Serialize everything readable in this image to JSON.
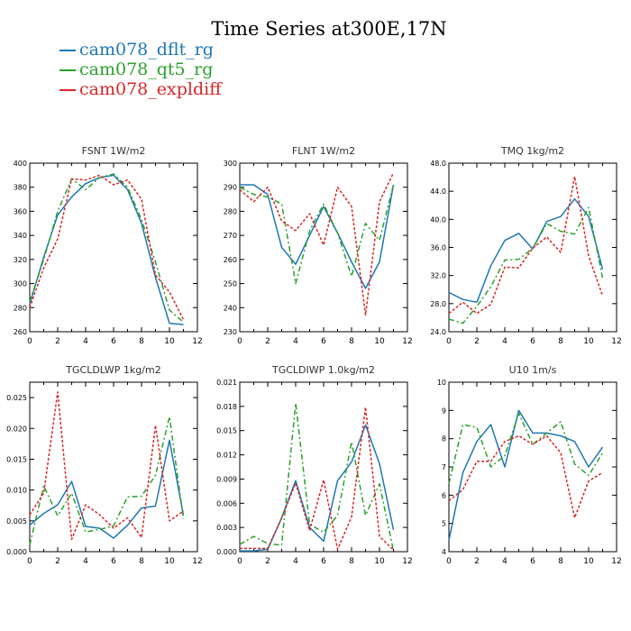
{
  "title": "Time Series at300E,17N",
  "legend": [
    {
      "name": "cam078_dflt_rg",
      "color": "#1f77b4"
    },
    {
      "name": "cam078_qt5_rg",
      "color": "#2ca02c"
    },
    {
      "name": "cam078_expldiff",
      "color": "#d62728"
    }
  ],
  "chart_data": [
    {
      "type": "line",
      "title": "FSNT   1W/m2",
      "x": [
        0,
        1,
        2,
        3,
        4,
        5,
        6,
        7,
        8,
        9,
        10,
        11
      ],
      "xlim": [
        0,
        12
      ],
      "xticks": [
        0,
        2,
        4,
        6,
        8,
        10,
        12
      ],
      "ylim": [
        260,
        400
      ],
      "yticks": [
        260,
        280,
        300,
        320,
        340,
        360,
        380,
        400
      ],
      "ytick_labels": [
        "260",
        "280",
        "300",
        "320",
        "340",
        "360",
        "380",
        "400"
      ],
      "series": [
        {
          "name": "cam078_dflt_rg",
          "color": "#1f77b4",
          "dash": "",
          "values": [
            283,
            322,
            357,
            372,
            383,
            388,
            390,
            378,
            350,
            305,
            267,
            266
          ]
        },
        {
          "name": "cam078_qt5_rg",
          "color": "#2ca02c",
          "dash": "6,3,2,3",
          "values": [
            285,
            320,
            360,
            387,
            378,
            388,
            391,
            380,
            353,
            318,
            278,
            268
          ]
        },
        {
          "name": "cam078_expldiff",
          "color": "#d62728",
          "dash": "3,2",
          "values": [
            280,
            313,
            337,
            387,
            386,
            390,
            382,
            386,
            370,
            307,
            293,
            270
          ]
        }
      ]
    },
    {
      "type": "line",
      "title": "FLNT   1W/m2",
      "x": [
        0,
        1,
        2,
        3,
        4,
        5,
        6,
        7,
        8,
        9,
        10,
        11
      ],
      "xlim": [
        0,
        12
      ],
      "xticks": [
        0,
        2,
        4,
        6,
        8,
        10,
        12
      ],
      "ylim": [
        230,
        300
      ],
      "yticks": [
        230,
        240,
        250,
        260,
        270,
        280,
        290,
        300
      ],
      "ytick_labels": [
        "230",
        "240",
        "250",
        "260",
        "270",
        "280",
        "290",
        "300"
      ],
      "series": [
        {
          "name": "cam078_dflt_rg",
          "color": "#1f77b4",
          "dash": "",
          "values": [
            291,
            291,
            287,
            265,
            258,
            270,
            282,
            271,
            259,
            248,
            259,
            291
          ]
        },
        {
          "name": "cam078_qt5_rg",
          "color": "#2ca02c",
          "dash": "6,3,2,3",
          "values": [
            290,
            287,
            286,
            283,
            250,
            272,
            283,
            271,
            253,
            275,
            268,
            291
          ]
        },
        {
          "name": "cam078_expldiff",
          "color": "#d62728",
          "dash": "3,2",
          "values": [
            289,
            284,
            290,
            276,
            272,
            279,
            266,
            290,
            282,
            237,
            284,
            296
          ]
        }
      ]
    },
    {
      "type": "line",
      "title": "TMQ   1kg/m2",
      "x": [
        0,
        1,
        2,
        3,
        4,
        5,
        6,
        7,
        8,
        9,
        10,
        11
      ],
      "xlim": [
        0,
        12
      ],
      "xticks": [
        0,
        2,
        4,
        6,
        8,
        10,
        12
      ],
      "ylim": [
        24,
        48
      ],
      "yticks": [
        24,
        28,
        32,
        36,
        40,
        44,
        48
      ],
      "ytick_labels": [
        "24.0",
        "28.0",
        "32.0",
        "36.0",
        "40.0",
        "44.0",
        "48.0"
      ],
      "series": [
        {
          "name": "cam078_dflt_rg",
          "color": "#1f77b4",
          "dash": "",
          "values": [
            29.6,
            28.6,
            28.2,
            33.4,
            37.0,
            38.0,
            35.8,
            39.7,
            40.4,
            42.9,
            40.4,
            32.9
          ]
        },
        {
          "name": "cam078_qt5_rg",
          "color": "#2ca02c",
          "dash": "6,3,2,3",
          "values": [
            25.8,
            25.2,
            27.6,
            30.4,
            34.2,
            34.3,
            35.9,
            39.4,
            38.3,
            37.9,
            41.7,
            31.6
          ]
        },
        {
          "name": "cam078_expldiff",
          "color": "#d62728",
          "dash": "3,2",
          "values": [
            26.6,
            28.2,
            26.6,
            27.9,
            33.2,
            33.1,
            35.9,
            37.5,
            35.3,
            46.1,
            34.8,
            29.1
          ]
        }
      ]
    },
    {
      "type": "line",
      "title": "TGCLDLWP   1kg/m2",
      "x": [
        0,
        1,
        2,
        3,
        4,
        5,
        6,
        7,
        8,
        9,
        10,
        11
      ],
      "xlim": [
        0,
        12
      ],
      "xticks": [
        0,
        2,
        4,
        6,
        8,
        10,
        12
      ],
      "ylim": [
        0,
        0.0275
      ],
      "yticks": [
        0,
        0.005,
        0.01,
        0.015,
        0.02,
        0.025
      ],
      "ytick_labels": [
        "0.000",
        "0.005",
        "0.010",
        "0.015",
        "0.020",
        "0.025"
      ],
      "series": [
        {
          "name": "cam078_dflt_rg",
          "color": "#1f77b4",
          "dash": "",
          "values": [
            0.0043,
            0.0062,
            0.0076,
            0.0114,
            0.0041,
            0.0038,
            0.0022,
            0.0043,
            0.0071,
            0.0074,
            0.0181,
            0.0059
          ]
        },
        {
          "name": "cam078_qt5_rg",
          "color": "#2ca02c",
          "dash": "6,3,2,3",
          "values": [
            0.0011,
            0.0107,
            0.0058,
            0.0095,
            0.0032,
            0.0036,
            0.0042,
            0.0089,
            0.009,
            0.0124,
            0.0219,
            0.0053
          ]
        },
        {
          "name": "cam078_expldiff",
          "color": "#d62728",
          "dash": "3,2",
          "values": [
            0.006,
            0.0095,
            0.0259,
            0.002,
            0.0076,
            0.006,
            0.0038,
            0.0055,
            0.0023,
            0.0205,
            0.005,
            0.0066
          ]
        }
      ]
    },
    {
      "type": "line",
      "title": "TGCLDIWP   1.0kg/m2",
      "x": [
        0,
        1,
        2,
        3,
        4,
        5,
        6,
        7,
        8,
        9,
        10,
        11
      ],
      "xlim": [
        0,
        12
      ],
      "xticks": [
        0,
        2,
        4,
        6,
        8,
        10,
        12
      ],
      "ylim": [
        0,
        0.021
      ],
      "yticks": [
        0,
        0.003,
        0.006,
        0.009,
        0.012,
        0.015,
        0.018,
        0.021
      ],
      "ytick_labels": [
        "0.000",
        "0.003",
        "0.006",
        "0.009",
        "0.012",
        "0.015",
        "0.018",
        "0.021"
      ],
      "series": [
        {
          "name": "cam078_dflt_rg",
          "color": "#1f77b4",
          "dash": "",
          "values": [
            0.0001,
            0.0001,
            0.0003,
            0.0042,
            0.0088,
            0.003,
            0.0013,
            0.0088,
            0.0111,
            0.0157,
            0.0109,
            0.0027
          ]
        },
        {
          "name": "cam078_qt5_rg",
          "color": "#2ca02c",
          "dash": "6,3,2,3",
          "values": [
            0.0009,
            0.0019,
            0.001,
            0.0008,
            0.0184,
            0.0034,
            0.0024,
            0.0045,
            0.0136,
            0.0045,
            0.0084,
            0.0001
          ]
        },
        {
          "name": "cam078_expldiff",
          "color": "#d62728",
          "dash": "3,2",
          "values": [
            0.0004,
            0.0004,
            0.0004,
            0.0042,
            0.0085,
            0.0026,
            0.0089,
            0.0003,
            0.0043,
            0.0179,
            0.0019,
            0.0002
          ]
        }
      ]
    },
    {
      "type": "line",
      "title": "U10   1m/s",
      "x": [
        0,
        1,
        2,
        3,
        4,
        5,
        6,
        7,
        8,
        9,
        10,
        11
      ],
      "xlim": [
        0,
        12
      ],
      "xticks": [
        0,
        2,
        4,
        6,
        8,
        10,
        12
      ],
      "ylim": [
        4,
        10
      ],
      "yticks": [
        4,
        5,
        6,
        7,
        8,
        9,
        10
      ],
      "ytick_labels": [
        "4",
        "5",
        "6",
        "7",
        "8",
        "9",
        "10"
      ],
      "series": [
        {
          "name": "cam078_dflt_rg",
          "color": "#1f77b4",
          "dash": "",
          "values": [
            4.4,
            6.8,
            7.9,
            8.5,
            7.0,
            9.0,
            8.2,
            8.2,
            8.1,
            7.9,
            7.0,
            7.7
          ]
        },
        {
          "name": "cam078_qt5_rg",
          "color": "#2ca02c",
          "dash": "6,3,2,3",
          "values": [
            6.4,
            8.5,
            8.4,
            7.0,
            7.4,
            8.9,
            7.8,
            8.2,
            8.6,
            7.1,
            6.7,
            7.5
          ]
        },
        {
          "name": "cam078_expldiff",
          "color": "#d62728",
          "dash": "3,2",
          "values": [
            5.8,
            6.2,
            7.2,
            7.2,
            7.9,
            8.1,
            7.8,
            8.1,
            7.5,
            5.2,
            6.5,
            6.8
          ]
        }
      ]
    }
  ]
}
